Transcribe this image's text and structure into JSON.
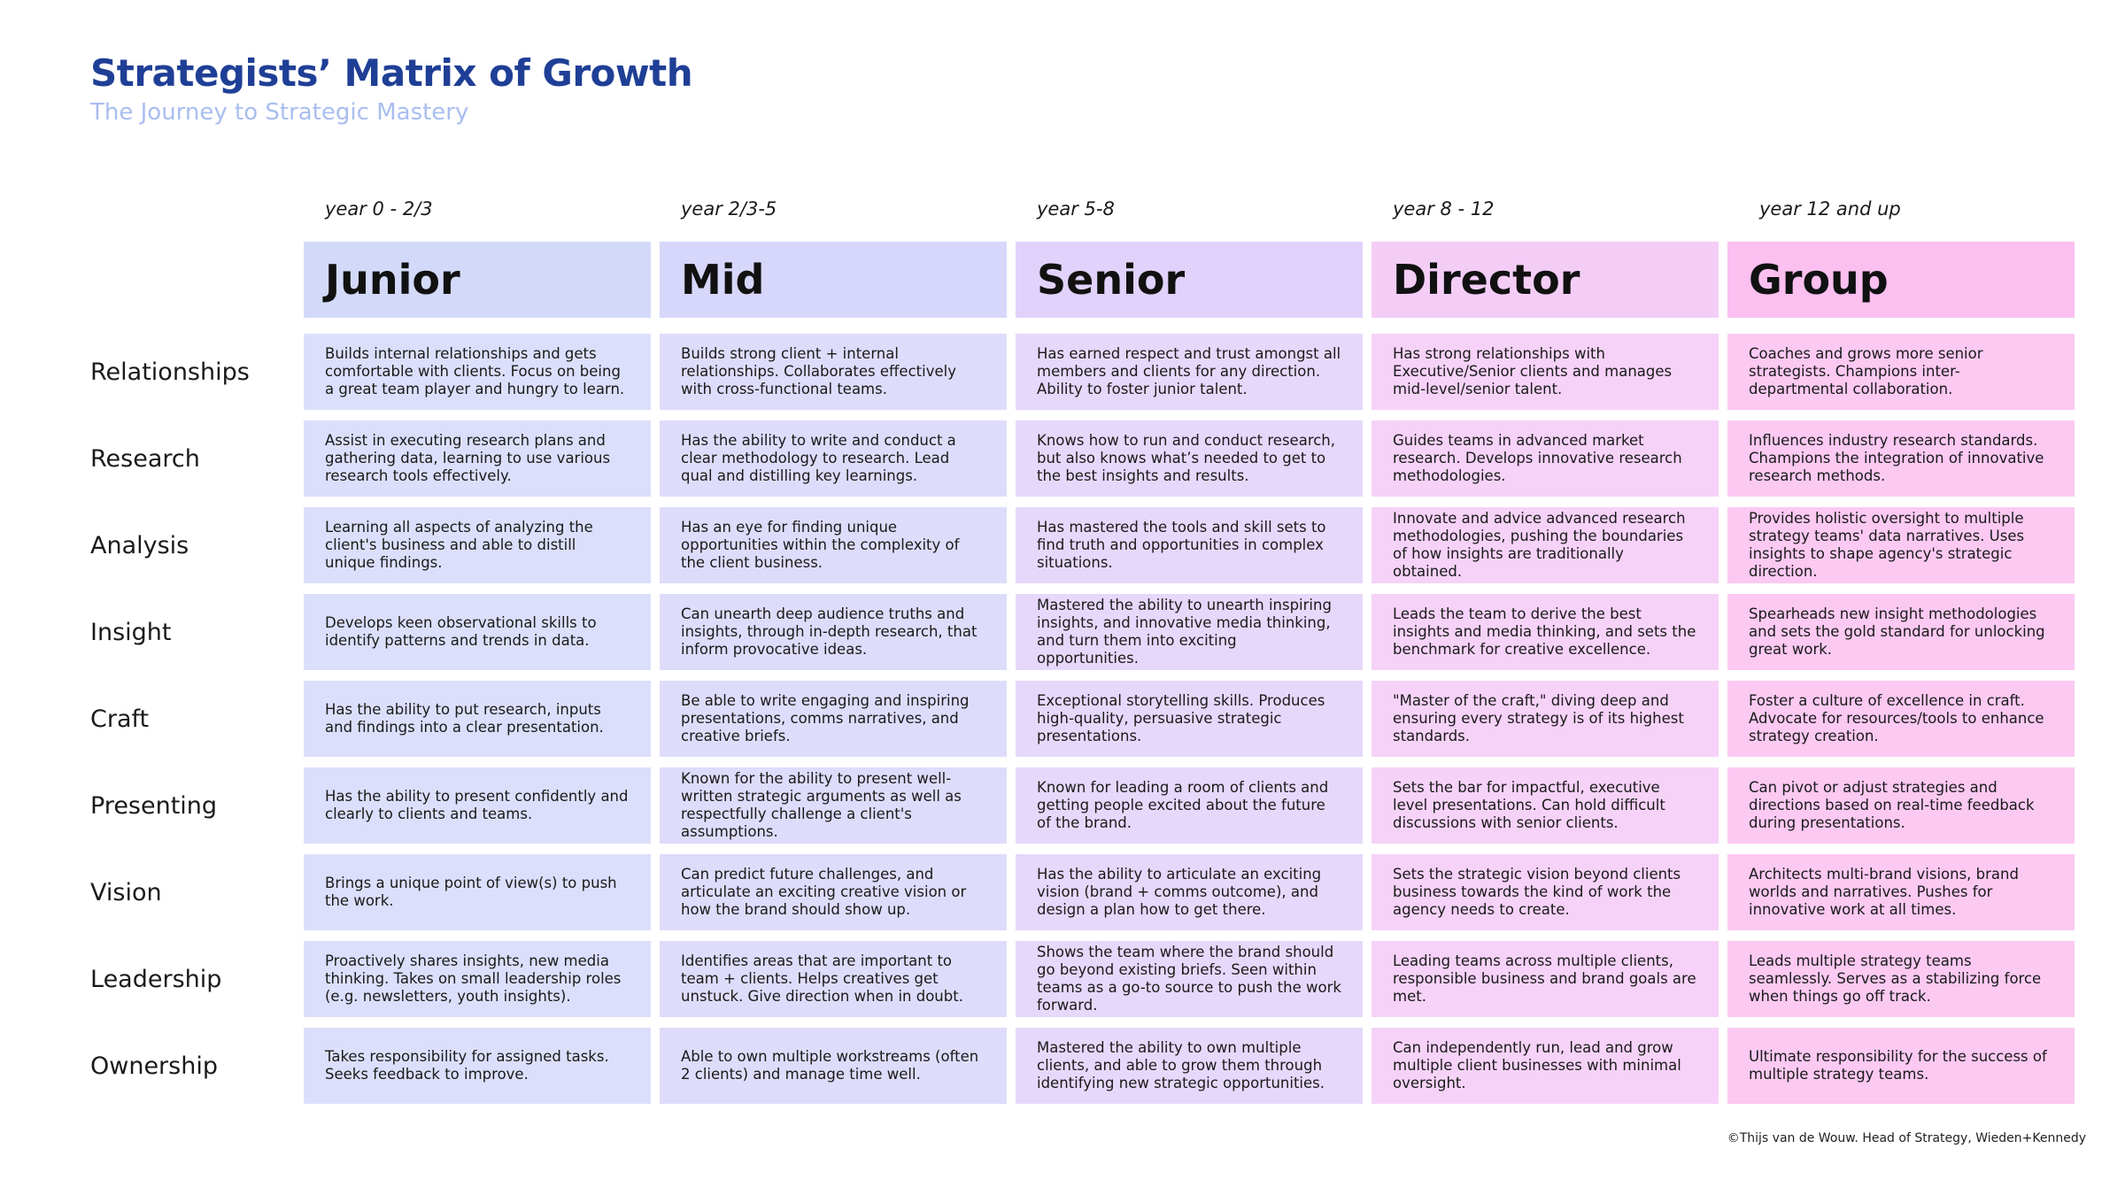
{
  "title": "Strategists’ Matrix of Growth",
  "subtitle": "The Journey to Strategic Mastery",
  "credit": "©Thijs van de Wouw. Head of Strategy, Wieden+Kennedy",
  "colors": {
    "title": "#1f3f96",
    "subtitle": "#a9bdf0",
    "column_fills": [
      "#dcdffb",
      "#dedcfb",
      "#e6d8fb",
      "#f6d2f8",
      "#fbc9f2"
    ],
    "header_fills": [
      "#d3daf9",
      "#d7d6fb",
      "#e0d2fb",
      "#f4cdf7",
      "#fbbff0"
    ]
  },
  "years": [
    "year 0 - 2/3",
    "year 2/3-5",
    "year 5-8",
    "year 8 - 12",
    "year 12 and up"
  ],
  "levels": [
    "Junior",
    "Mid",
    "Senior",
    "Director",
    "Group"
  ],
  "rows": [
    {
      "label": "Relationships",
      "cells": [
        "Builds internal relationships and gets comfortable with clients. Focus on being a great team player and hungry to learn.",
        "Builds strong client + internal relationships. Collaborates effectively with cross-functional teams.",
        "Has earned respect and trust amongst all members and clients for any direction. Ability to foster junior talent.",
        "Has strong relationships with Executive/Senior clients and manages mid-level/senior talent.",
        "Coaches and grows more senior strategists. Champions inter-departmental collaboration."
      ]
    },
    {
      "label": "Research",
      "cells": [
        "Assist in executing research plans and gathering data, learning to use various research tools effectively.",
        "Has the ability to write and conduct a clear methodology to research. Lead qual and distilling key learnings.",
        "Knows how to run and conduct research, but also knows what’s needed to get to the best insights and results.",
        "Guides teams in advanced market research. Develops innovative research methodologies.",
        "Influences industry research standards. Champions the integration of innovative research methods."
      ]
    },
    {
      "label": "Analysis",
      "cells": [
        "Learning all aspects of analyzing the client's business and able to distill unique findings.",
        "Has an eye for finding unique opportunities within the complexity of the client business.",
        "Has mastered the tools and skill sets to find truth and opportunities in complex situations.",
        "Innovate and advice advanced research methodologies, pushing the boundaries of how insights are traditionally obtained.",
        "Provides holistic oversight to multiple strategy teams' data narratives. Uses insights to shape agency's strategic direction."
      ]
    },
    {
      "label": "Insight",
      "cells": [
        "Develops keen observational skills to identify patterns and trends in data.",
        "Can unearth deep audience truths and insights, through in-depth research, that inform provocative ideas.",
        "Mastered the ability to unearth inspiring insights, and innovative media thinking, and turn them into exciting opportunities.",
        "Leads the team to derive the best insights and media thinking, and sets the benchmark for creative excellence.",
        "Spearheads new insight methodologies and sets the gold standard for unlocking great work."
      ]
    },
    {
      "label": "Craft",
      "cells": [
        "Has the ability to put research, inputs and findings into a clear presentation.",
        "Be able to write engaging and inspiring presentations, comms narratives, and creative briefs.",
        "Exceptional storytelling skills. Produces high-quality, persuasive strategic presentations.",
        "\"Master of the craft,\" diving deep and ensuring every strategy is of its highest standards.",
        "Foster a culture of excellence in craft. Advocate for resources/tools to enhance strategy creation."
      ]
    },
    {
      "label": "Presenting",
      "cells": [
        "Has the ability to present confidently and clearly to clients and teams.",
        "Known for the ability to present well-written strategic arguments as well as respectfully challenge a client's assumptions.",
        "Known for leading a room of clients and getting people excited about the future of the brand.",
        "Sets the bar for impactful, executive level presentations. Can hold difficult discussions with senior clients.",
        "Can pivot or adjust strategies and directions based on real-time feedback during presentations."
      ]
    },
    {
      "label": "Vision",
      "cells": [
        "Brings a unique point of view(s) to push the work.",
        "Can predict future challenges, and articulate an exciting creative vision or how the brand should show up.",
        "Has the ability to articulate an exciting vision (brand + comms outcome), and design a plan how to get there.",
        "Sets the strategic vision beyond clients business towards the kind of work the agency needs to create.",
        "Architects multi-brand visions, brand worlds and narratives. Pushes for innovative work at all times."
      ]
    },
    {
      "label": "Leadership",
      "cells": [
        "Proactively shares insights, new media thinking. Takes on small leadership roles (e.g. newsletters, youth insights).",
        "Identifies areas that are important to team + clients. Helps creatives get unstuck. Give direction when in doubt.",
        "Shows the team where the brand should go beyond existing briefs. Seen within teams as a go-to source to push the work forward.",
        "Leading teams across multiple clients, responsible business and brand goals are met.",
        "Leads multiple strategy teams seamlessly. Serves as a stabilizing force when things go off track."
      ]
    },
    {
      "label": "Ownership",
      "cells": [
        "Takes responsibility for assigned tasks. Seeks feedback to improve.",
        "Able to own multiple workstreams (often 2 clients) and manage time well.",
        "Mastered the ability to own multiple clients, and able to grow them through identifying new strategic opportunities.",
        "Can independently run, lead and grow multiple client businesses with minimal oversight.",
        "Ultimate responsibility for the success of multiple strategy teams."
      ]
    }
  ]
}
